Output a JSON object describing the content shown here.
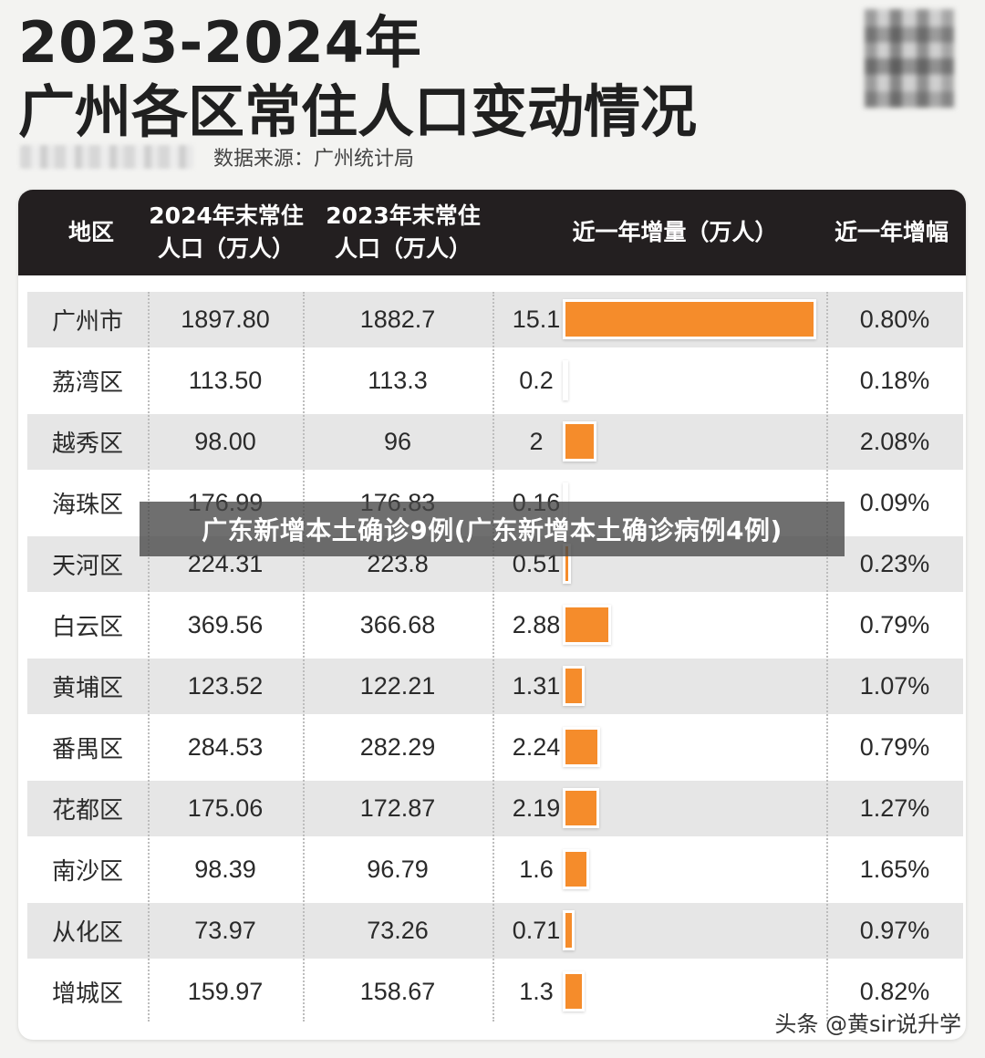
{
  "title": {
    "line1": "2023-2024年",
    "line2": "广州各区常住人口变动情况"
  },
  "source": "数据来源：广州统计局",
  "overlay_banner": "广东新增本土确诊9例(广东新增本土确诊病例4例)",
  "watermark": "头条 @黄sir说升学",
  "colors": {
    "header_bg": "#231f20",
    "bar": "#f58c2b",
    "row_shade": "#e6e6e6"
  },
  "chart_data": {
    "type": "table",
    "columns": [
      "地区",
      "2024年末常住\n人口（万人）",
      "2023年末常住\n人口（万人）",
      "近一年增量（万人）",
      "近一年增幅"
    ],
    "rows": [
      {
        "region": "广州市",
        "pop2024": "1897.80",
        "pop2023": "1882.7",
        "increase": "15.1",
        "increase_value": 15.1,
        "growth": "0.80%"
      },
      {
        "region": "荔湾区",
        "pop2024": "113.50",
        "pop2023": "113.3",
        "increase": "0.2",
        "increase_value": 0.2,
        "growth": "0.18%"
      },
      {
        "region": "越秀区",
        "pop2024": "98.00",
        "pop2023": "96",
        "increase": "2",
        "increase_value": 2,
        "growth": "2.08%"
      },
      {
        "region": "海珠区",
        "pop2024": "176.99",
        "pop2023": "176.83",
        "increase": "0.16",
        "increase_value": 0.16,
        "growth": "0.09%"
      },
      {
        "region": "天河区",
        "pop2024": "224.31",
        "pop2023": "223.8",
        "increase": "0.51",
        "increase_value": 0.51,
        "growth": "0.23%"
      },
      {
        "region": "白云区",
        "pop2024": "369.56",
        "pop2023": "366.68",
        "increase": "2.88",
        "increase_value": 2.88,
        "growth": "0.79%"
      },
      {
        "region": "黄埔区",
        "pop2024": "123.52",
        "pop2023": "122.21",
        "increase": "1.31",
        "increase_value": 1.31,
        "growth": "1.07%"
      },
      {
        "region": "番禺区",
        "pop2024": "284.53",
        "pop2023": "282.29",
        "increase": "2.24",
        "increase_value": 2.24,
        "growth": "0.79%"
      },
      {
        "region": "花都区",
        "pop2024": "175.06",
        "pop2023": "172.87",
        "increase": "2.19",
        "increase_value": 2.19,
        "growth": "1.27%"
      },
      {
        "region": "南沙区",
        "pop2024": "98.39",
        "pop2023": "96.79",
        "increase": "1.6",
        "increase_value": 1.6,
        "growth": "1.65%"
      },
      {
        "region": "从化区",
        "pop2024": "73.97",
        "pop2023": "73.26",
        "increase": "0.71",
        "increase_value": 0.71,
        "growth": "0.97%"
      },
      {
        "region": "增城区",
        "pop2024": "159.97",
        "pop2023": "158.67",
        "increase": "1.3",
        "increase_value": 1.3,
        "growth": "0.82%"
      }
    ]
  }
}
